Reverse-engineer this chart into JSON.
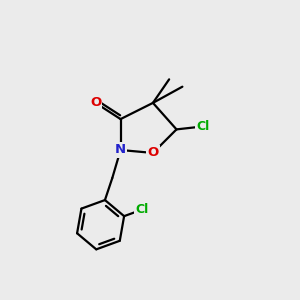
{
  "background_color": "#ebebeb",
  "atom_colors": {
    "C": "#000000",
    "N": "#2222cc",
    "O": "#dd0000",
    "Cl": "#00aa00"
  },
  "figsize": [
    3.0,
    3.0
  ],
  "dpi": 100,
  "bond_lw": 1.6,
  "font_size_hetero": 9.5,
  "font_size_cl": 9.0
}
